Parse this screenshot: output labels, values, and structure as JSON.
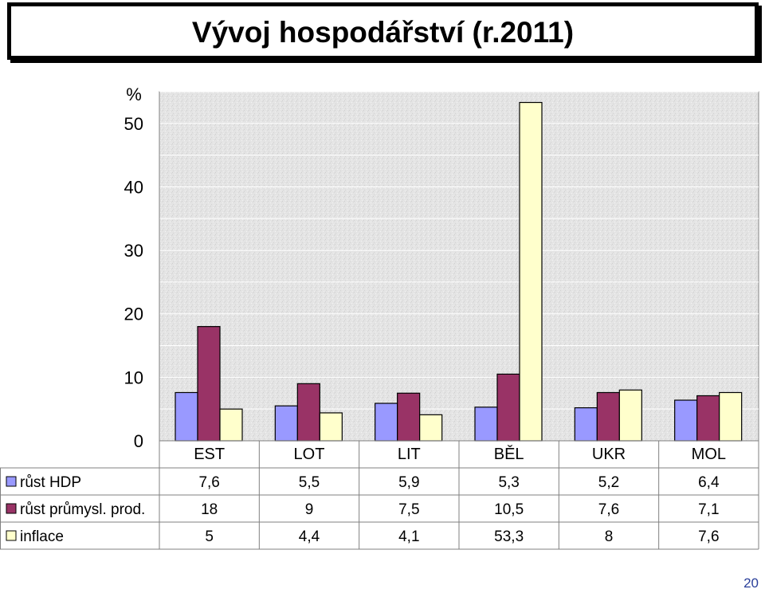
{
  "title": "Vývoj hospodářství (r.2011)",
  "page_number": "20",
  "chart_data": {
    "type": "bar",
    "ylabel": "%",
    "ylim": [
      0,
      55
    ],
    "yticks": [
      0,
      10,
      20,
      30,
      40,
      50
    ],
    "grid": true,
    "categories": [
      "EST",
      "LOT",
      "LIT",
      "BĚL",
      "UKR",
      "MOL"
    ],
    "series": [
      {
        "name": "růst HDP",
        "color": "#9999ff",
        "values": [
          7.6,
          5.5,
          5.9,
          5.3,
          5.2,
          6.4
        ],
        "labels": [
          "7,6",
          "5,5",
          "5,9",
          "5,3",
          "5,2",
          "6,4"
        ]
      },
      {
        "name": "růst průmysl. prod.",
        "color": "#993366",
        "values": [
          18,
          9,
          7.5,
          10.5,
          7.6,
          7.1
        ],
        "labels": [
          "18",
          "9",
          "7,5",
          "10,5",
          "7,6",
          "7,1"
        ]
      },
      {
        "name": "inflace",
        "color": "#ffffcc",
        "values": [
          5,
          4.4,
          4.1,
          53.3,
          8,
          7.6
        ],
        "labels": [
          "5",
          "4,4",
          "4,1",
          "53,3",
          "8",
          "7,6"
        ]
      }
    ]
  }
}
